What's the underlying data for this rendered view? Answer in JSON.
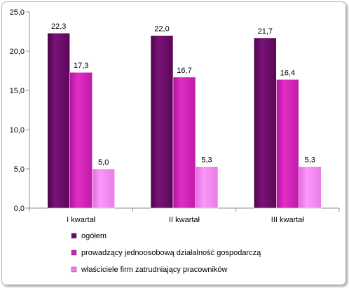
{
  "chart_data": {
    "type": "bar",
    "categories": [
      "I kwartał",
      "II kwartał",
      "III kwartał"
    ],
    "series": [
      {
        "name": "ogółem",
        "values": [
          22.3,
          22.0,
          21.7
        ],
        "labels": [
          "22,3",
          "22,0",
          "21,7"
        ],
        "color": "#6e0a6b"
      },
      {
        "name": "prowadzący jednoosobową działalność gospodarczą",
        "values": [
          17.3,
          16.7,
          16.4
        ],
        "labels": [
          "17,3",
          "16,7",
          "16,4"
        ],
        "color": "#d11fb8"
      },
      {
        "name": "właściciele firm zatrudniający pracowników",
        "values": [
          5.0,
          5.3,
          5.3
        ],
        "labels": [
          "5,0",
          "5,3",
          "5,3"
        ],
        "color": "#f07af0"
      }
    ],
    "y_ticks": [
      "0,0",
      "5,0",
      "10,0",
      "15,0",
      "20,0",
      "25,0"
    ],
    "y_tick_values": [
      0,
      5,
      10,
      15,
      20,
      25
    ],
    "ylim": [
      0,
      25
    ],
    "grid": false,
    "legend_position": "bottom"
  }
}
